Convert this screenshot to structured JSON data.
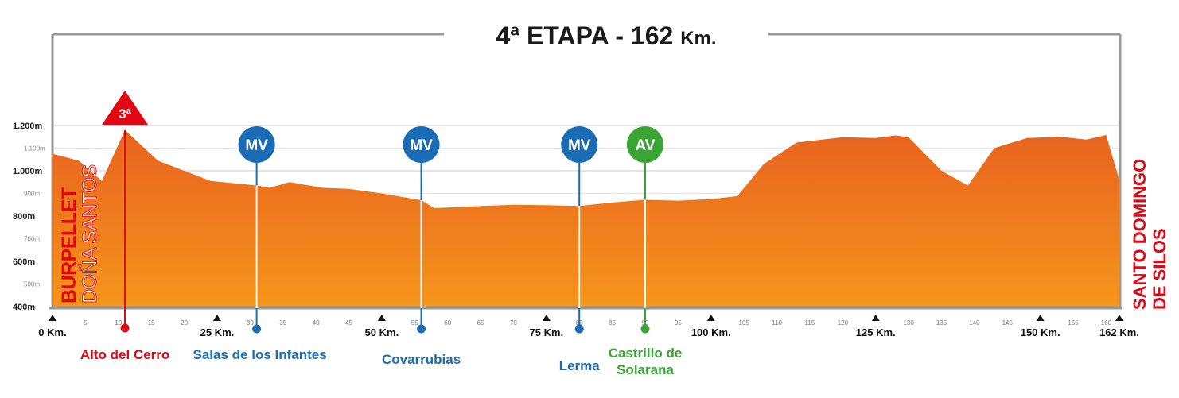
{
  "title_main": "4ª ETAPA - 162",
  "title_unit": "Km.",
  "colors": {
    "profile_top": "#e8621f",
    "profile_bottom": "#f5951b",
    "mountain": "#e30613",
    "intermediate": "#1a6db5",
    "sprint": "#3aa535",
    "frame": "#999999"
  },
  "chart_data": {
    "type": "area",
    "title": "4ª ETAPA - 162 Km.",
    "xlabel": "",
    "ylabel": "",
    "xlim": [
      0,
      162
    ],
    "ylim": [
      400,
      1200
    ],
    "y_major_ticks": [
      "1.200m",
      "1.000m",
      "800m",
      "600m",
      "400m"
    ],
    "y_major_values": [
      1200,
      1000,
      800,
      600,
      400
    ],
    "y_minor_ticks": [
      "1.100m",
      "900m",
      "700m",
      "500m"
    ],
    "y_minor_values": [
      1100,
      900,
      700,
      500
    ],
    "x_major_ticks": [
      "0 Km.",
      "25 Km.",
      "50 Km.",
      "75 Km.",
      "100 Km.",
      "125 Km.",
      "150 Km.",
      "162 Km."
    ],
    "x_major_values": [
      0,
      25,
      50,
      75,
      100,
      125,
      150,
      162
    ],
    "x_minor_ticks": [
      "5",
      "10",
      "15",
      "20",
      "30",
      "35",
      "40",
      "45",
      "55",
      "60",
      "65",
      "70",
      "80",
      "85",
      "90",
      "95",
      "105",
      "110",
      "115",
      "120",
      "130",
      "135",
      "140",
      "145",
      "155",
      "160"
    ],
    "x_minor_values": [
      5,
      10,
      15,
      20,
      30,
      35,
      40,
      45,
      55,
      60,
      65,
      70,
      80,
      85,
      90,
      95,
      105,
      110,
      115,
      120,
      130,
      135,
      140,
      145,
      155,
      160
    ],
    "profile": {
      "x": [
        0,
        4,
        7.5,
        11,
        16,
        24,
        31,
        33,
        36,
        41,
        45,
        50,
        56,
        58,
        65,
        70,
        75,
        80,
        85,
        90,
        95,
        100,
        104,
        108,
        113,
        120,
        125,
        128,
        130,
        135,
        139,
        143,
        148,
        153,
        157,
        160,
        162
      ],
      "y": [
        1075,
        1045,
        955,
        1180,
        1045,
        955,
        935,
        925,
        950,
        925,
        920,
        900,
        870,
        835,
        845,
        850,
        848,
        845,
        860,
        872,
        868,
        875,
        888,
        1030,
        1125,
        1148,
        1145,
        1156,
        1148,
        1000,
        935,
        1100,
        1145,
        1150,
        1138,
        1158,
        960
      ]
    },
    "start": {
      "km": 0,
      "labels": [
        "BURPELLET",
        "DOÑA SANTOS"
      ]
    },
    "finish": {
      "km": 162,
      "labels": [
        "SANTO DOMINGO",
        "DE SILOS"
      ]
    },
    "points": [
      {
        "km": 11,
        "elev": 1180,
        "badge": "3ª",
        "kind": "mountain",
        "name_lines": [
          "Alto del Cerro"
        ]
      },
      {
        "km": 31,
        "elev": 935,
        "badge": "MV",
        "kind": "intermediate",
        "name_lines": [
          "Salas de los Infantes"
        ]
      },
      {
        "km": 56,
        "elev": 870,
        "badge": "MV",
        "kind": "intermediate",
        "name_lines": [
          "Covarrubias"
        ]
      },
      {
        "km": 80,
        "elev": 845,
        "badge": "MV",
        "kind": "intermediate",
        "name_lines": [
          "Lerma"
        ]
      },
      {
        "km": 90,
        "elev": 872,
        "badge": "AV",
        "kind": "sprint",
        "name_lines": [
          "Castrillo de",
          "Solarana"
        ]
      }
    ]
  }
}
